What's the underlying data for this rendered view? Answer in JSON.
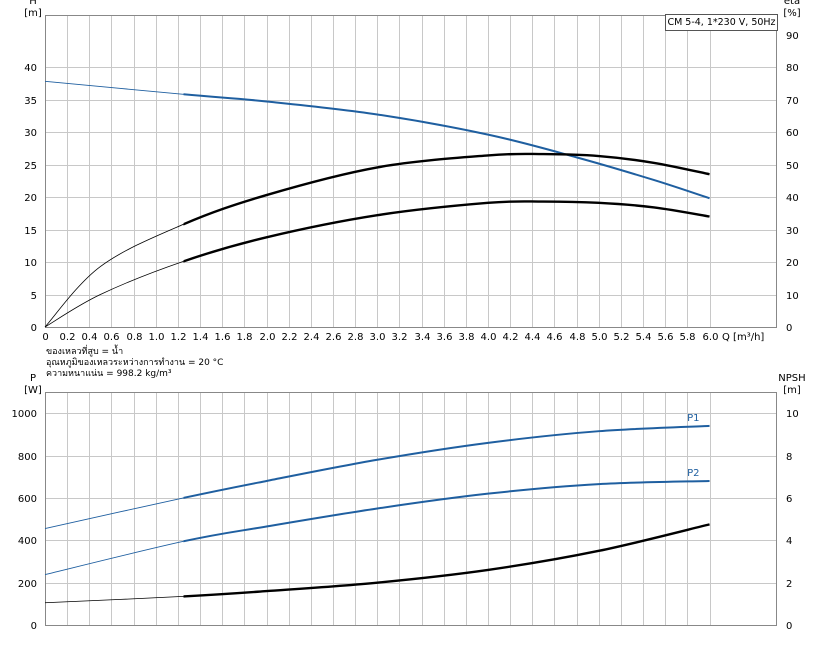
{
  "chart_data": [
    {
      "type": "line",
      "title": "CM 5-4, 1*230 V, 50Hz",
      "x_label": "Q [m³/h]",
      "x_ticks": [
        "0",
        "0.2",
        "0.4",
        "0.6",
        "0.8",
        "1.0",
        "1.2",
        "1.4",
        "1.6",
        "1.8",
        "2.0",
        "2.2",
        "2.4",
        "2.6",
        "2.8",
        "3.0",
        "3.2",
        "3.4",
        "3.6",
        "3.8",
        "4.0",
        "4.2",
        "4.4",
        "4.6",
        "4.8",
        "5.0",
        "5.2",
        "5.4",
        "5.6",
        "5.8",
        "6.0"
      ],
      "xlim": [
        0,
        6.6
      ],
      "y_left": {
        "label_top": "H",
        "label_unit": "[m]",
        "ylim": [
          0,
          48
        ],
        "ticks": [
          "0",
          "5",
          "10",
          "15",
          "20",
          "25",
          "30",
          "35",
          "40"
        ]
      },
      "y_right": {
        "label_top": "eta",
        "label_unit": "[%]",
        "ylim": [
          0,
          96
        ],
        "ticks": [
          "0",
          "10",
          "20",
          "30",
          "40",
          "50",
          "60",
          "70",
          "80",
          "90"
        ]
      },
      "grid": true,
      "series": [
        {
          "axis": "left",
          "color": "#1f5fa0",
          "x": [
            0,
            1.25,
            2.0,
            3.0,
            4.0,
            4.8,
            5.5,
            6.0
          ],
          "values": [
            37.8,
            35.8,
            34.7,
            32.7,
            29.6,
            26.1,
            22.6,
            19.8
          ]
        },
        {
          "axis": "right",
          "color": "#000000",
          "x": [
            0,
            0.5,
            1.25,
            2.0,
            3.0,
            4.0,
            4.5,
            5.0,
            5.5,
            6.0
          ],
          "values": [
            0,
            18.6,
            31.6,
            40.6,
            49.1,
            52.8,
            53.2,
            52.6,
            50.5,
            47.0
          ]
        },
        {
          "axis": "left",
          "color": "#000000",
          "x": [
            0,
            0.5,
            1.25,
            2.0,
            3.0,
            4.0,
            4.5,
            5.0,
            5.5,
            6.0
          ],
          "values": [
            0,
            5.0,
            10.1,
            13.8,
            17.2,
            19.1,
            19.3,
            19.1,
            18.4,
            17.0
          ]
        }
      ]
    },
    {
      "type": "line",
      "x_ticks": [
        "0",
        "0.2",
        "0.4",
        "0.6",
        "0.8",
        "1.0",
        "1.2",
        "1.4",
        "1.6",
        "1.8",
        "2.0",
        "2.2",
        "2.4",
        "2.6",
        "2.8",
        "3.0",
        "3.2",
        "3.4",
        "3.6",
        "3.8",
        "4.0",
        "4.2",
        "4.4",
        "4.6",
        "4.8",
        "5.0",
        "5.2",
        "5.4",
        "5.6",
        "5.8",
        "6.0"
      ],
      "xlim": [
        0,
        6.6
      ],
      "y_left": {
        "label_top": "P",
        "label_unit": "[W]",
        "ylim": [
          0,
          1100
        ],
        "ticks": [
          "0",
          "200",
          "400",
          "600",
          "800",
          "1000"
        ]
      },
      "y_right": {
        "label_top": "NPSH",
        "label_unit": "[m]",
        "ylim": [
          0,
          11
        ],
        "ticks": [
          "0",
          "2",
          "4",
          "6",
          "8",
          "10"
        ]
      },
      "grid": true,
      "series": [
        {
          "name": "P1",
          "axis": "left",
          "color": "#1f5fa0",
          "x": [
            0,
            1.25,
            2.0,
            3.0,
            4.0,
            5.0,
            6.0
          ],
          "values": [
            455,
            600,
            680,
            780,
            860,
            915,
            940
          ]
        },
        {
          "name": "P2",
          "axis": "left",
          "color": "#1f5fa0",
          "x": [
            0,
            1.25,
            2.0,
            3.0,
            4.0,
            5.0,
            6.0
          ],
          "values": [
            238,
            395,
            465,
            550,
            620,
            665,
            680
          ]
        },
        {
          "axis": "right",
          "color": "#000000",
          "x": [
            0,
            1.25,
            2.0,
            3.0,
            4.0,
            5.0,
            6.0
          ],
          "values": [
            1.05,
            1.35,
            1.6,
            2.0,
            2.6,
            3.5,
            4.75
          ]
        }
      ]
    }
  ],
  "notes": [
    "ของเหลวที่สูบ = น้ำ",
    "อุณหภูมิของเหลวระหว่างการทำงาน = 20 °C",
    "ความหนาแน่น = 998.2 kg/m³"
  ]
}
